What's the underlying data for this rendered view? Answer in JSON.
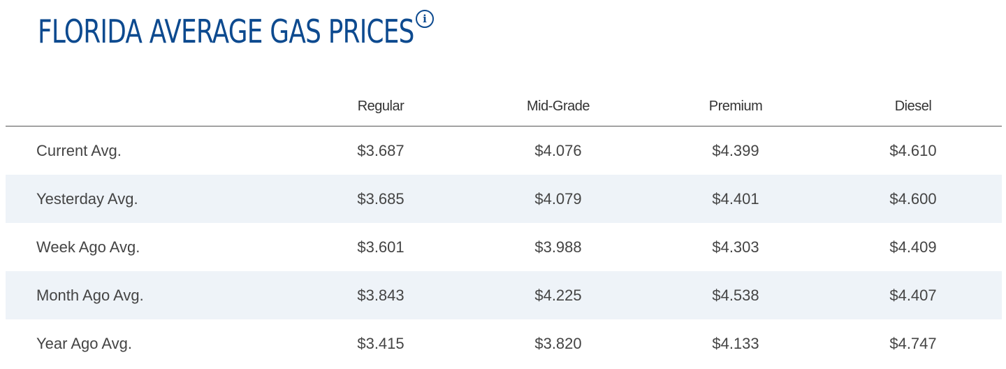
{
  "header": {
    "title": "FLORIDA AVERAGE GAS PRICES",
    "info_icon": "info-icon"
  },
  "colors": {
    "title": "#0d4a8f",
    "stripe": "#eef3f8"
  },
  "table": {
    "columns": [
      "",
      "Regular",
      "Mid-Grade",
      "Premium",
      "Diesel"
    ],
    "rows": [
      {
        "label": "Current Avg.",
        "values": [
          "$3.687",
          "$4.076",
          "$4.399",
          "$4.610"
        ]
      },
      {
        "label": "Yesterday Avg.",
        "values": [
          "$3.685",
          "$4.079",
          "$4.401",
          "$4.600"
        ]
      },
      {
        "label": "Week Ago Avg.",
        "values": [
          "$3.601",
          "$3.988",
          "$4.303",
          "$4.409"
        ]
      },
      {
        "label": "Month Ago Avg.",
        "values": [
          "$3.843",
          "$4.225",
          "$4.538",
          "$4.407"
        ]
      },
      {
        "label": "Year Ago Avg.",
        "values": [
          "$3.415",
          "$3.820",
          "$4.133",
          "$4.747"
        ]
      }
    ]
  }
}
